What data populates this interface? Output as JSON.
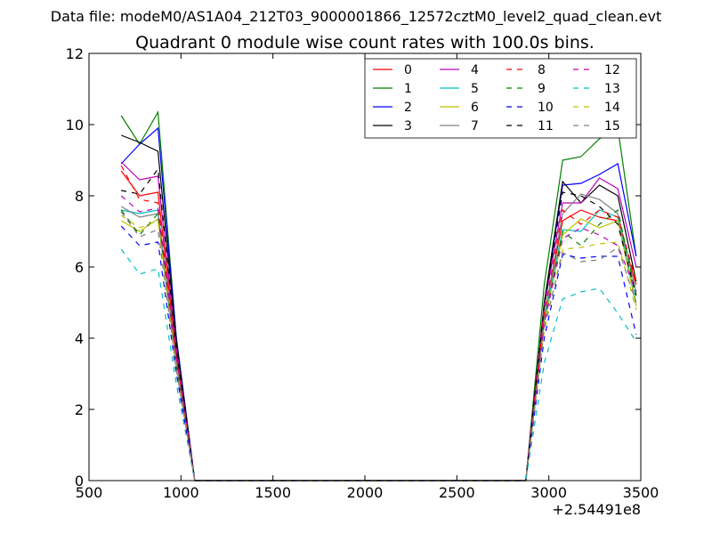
{
  "figure": {
    "suptitle": "Data file: modeM0/AS1A04_212T03_9000001866_12572cztM0_level2_quad_clean.evt",
    "title": "Quadrant 0 module wise count rates with 100.0s bins.",
    "x_offset_label": "+2.54491e8"
  },
  "chart_data": {
    "type": "line",
    "title": "Quadrant 0 module wise count rates with 100.0s bins.",
    "xlabel": "",
    "ylabel": "",
    "x_offset": "+2.54491e8",
    "xlim": [
      500,
      3500
    ],
    "ylim": [
      0,
      12
    ],
    "xticks": [
      "500",
      "1000",
      "1500",
      "2000",
      "2500",
      "3000",
      "3500"
    ],
    "yticks": [
      "0",
      "2",
      "4",
      "6",
      "8",
      "10",
      "12"
    ],
    "grid": false,
    "legend_position": "top-right",
    "legend_columns": 4,
    "x": [
      675,
      775,
      875,
      975,
      1075,
      1175,
      1275,
      1375,
      1475,
      1575,
      1675,
      1775,
      1875,
      1975,
      2075,
      2175,
      2275,
      2375,
      2475,
      2575,
      2675,
      2775,
      2875,
      2975,
      3075,
      3175,
      3275,
      3375,
      3475
    ],
    "series": [
      {
        "name": "0",
        "color": "#ff0000",
        "dashed": false,
        "values": [
          8.7,
          8.0,
          8.1,
          3.5,
          0,
          0,
          0,
          0,
          0,
          0,
          0,
          0,
          0,
          0,
          0,
          0,
          0,
          0,
          0,
          0,
          0,
          0,
          0,
          4.6,
          7.3,
          7.6,
          7.4,
          7.3,
          5.5
        ]
      },
      {
        "name": "1",
        "color": "#008000",
        "dashed": false,
        "values": [
          10.25,
          9.45,
          10.35,
          4.0,
          0,
          0,
          0,
          0,
          0,
          0,
          0,
          0,
          0,
          0,
          0,
          0,
          0,
          0,
          0,
          0,
          0,
          0,
          0,
          5.5,
          9.0,
          9.1,
          9.6,
          9.9,
          6.3
        ]
      },
      {
        "name": "2",
        "color": "#0000ff",
        "dashed": false,
        "values": [
          8.9,
          9.45,
          9.9,
          4.0,
          0,
          0,
          0,
          0,
          0,
          0,
          0,
          0,
          0,
          0,
          0,
          0,
          0,
          0,
          0,
          0,
          0,
          0,
          0,
          4.9,
          8.3,
          8.35,
          8.6,
          8.9,
          6.3
        ]
      },
      {
        "name": "3",
        "color": "#000000",
        "dashed": false,
        "values": [
          9.7,
          9.5,
          9.25,
          3.9,
          0,
          0,
          0,
          0,
          0,
          0,
          0,
          0,
          0,
          0,
          0,
          0,
          0,
          0,
          0,
          0,
          0,
          0,
          0,
          5.0,
          8.4,
          7.8,
          8.3,
          8.0,
          5.6
        ]
      },
      {
        "name": "4",
        "color": "#bf00bf",
        "dashed": false,
        "values": [
          8.95,
          8.45,
          8.55,
          3.7,
          0,
          0,
          0,
          0,
          0,
          0,
          0,
          0,
          0,
          0,
          0,
          0,
          0,
          0,
          0,
          0,
          0,
          0,
          0,
          4.9,
          7.8,
          7.8,
          8.5,
          8.2,
          6.0
        ]
      },
      {
        "name": "5",
        "color": "#00bfbf",
        "dashed": false,
        "values": [
          7.6,
          7.5,
          7.6,
          3.3,
          0,
          0,
          0,
          0,
          0,
          0,
          0,
          0,
          0,
          0,
          0,
          0,
          0,
          0,
          0,
          0,
          0,
          0,
          0,
          4.5,
          7.05,
          7.0,
          7.6,
          7.4,
          5.0
        ]
      },
      {
        "name": "6",
        "color": "#bfbf00",
        "dashed": false,
        "values": [
          7.3,
          7.0,
          7.35,
          3.2,
          0,
          0,
          0,
          0,
          0,
          0,
          0,
          0,
          0,
          0,
          0,
          0,
          0,
          0,
          0,
          0,
          0,
          0,
          0,
          4.4,
          6.9,
          7.35,
          7.1,
          7.3,
          4.9
        ]
      },
      {
        "name": "7",
        "color": "#808080",
        "dashed": false,
        "values": [
          7.7,
          7.4,
          7.5,
          3.3,
          0,
          0,
          0,
          0,
          0,
          0,
          0,
          0,
          0,
          0,
          0,
          0,
          0,
          0,
          0,
          0,
          0,
          0,
          0,
          4.6,
          7.5,
          8.05,
          7.9,
          7.5,
          5.3
        ]
      },
      {
        "name": "8",
        "color": "#ff0000",
        "dashed": true,
        "values": [
          8.85,
          7.9,
          7.8,
          3.5,
          0,
          0,
          0,
          0,
          0,
          0,
          0,
          0,
          0,
          0,
          0,
          0,
          0,
          0,
          0,
          0,
          0,
          0,
          0,
          4.7,
          7.6,
          7.2,
          7.6,
          7.4,
          5.6
        ]
      },
      {
        "name": "9",
        "color": "#008000",
        "dashed": true,
        "values": [
          7.6,
          6.9,
          7.5,
          3.2,
          0,
          0,
          0,
          0,
          0,
          0,
          0,
          0,
          0,
          0,
          0,
          0,
          0,
          0,
          0,
          0,
          0,
          0,
          0,
          4.4,
          7.0,
          6.6,
          7.2,
          7.6,
          5.2
        ]
      },
      {
        "name": "10",
        "color": "#0000ff",
        "dashed": true,
        "values": [
          7.15,
          6.6,
          6.7,
          3.0,
          0,
          0,
          0,
          0,
          0,
          0,
          0,
          0,
          0,
          0,
          0,
          0,
          0,
          0,
          0,
          0,
          0,
          0,
          0,
          4.0,
          6.35,
          6.25,
          6.3,
          6.3,
          4.1
        ]
      },
      {
        "name": "11",
        "color": "#000000",
        "dashed": true,
        "values": [
          8.15,
          8.05,
          8.75,
          3.7,
          0,
          0,
          0,
          0,
          0,
          0,
          0,
          0,
          0,
          0,
          0,
          0,
          0,
          0,
          0,
          0,
          0,
          0,
          0,
          4.9,
          8.1,
          8.0,
          7.7,
          7.2,
          5.2
        ]
      },
      {
        "name": "12",
        "color": "#bf00bf",
        "dashed": true,
        "values": [
          8.0,
          7.55,
          7.65,
          3.4,
          0,
          0,
          0,
          0,
          0,
          0,
          0,
          0,
          0,
          0,
          0,
          0,
          0,
          0,
          0,
          0,
          0,
          0,
          0,
          4.4,
          6.8,
          7.1,
          6.9,
          6.6,
          5.3
        ]
      },
      {
        "name": "13",
        "color": "#00bfbf",
        "dashed": true,
        "values": [
          6.5,
          5.8,
          5.95,
          2.7,
          0,
          0,
          0,
          0,
          0,
          0,
          0,
          0,
          0,
          0,
          0,
          0,
          0,
          0,
          0,
          0,
          0,
          0,
          0,
          3.3,
          5.1,
          5.3,
          5.4,
          4.7,
          3.9
        ]
      },
      {
        "name": "14",
        "color": "#bfbf00",
        "dashed": true,
        "values": [
          7.45,
          7.1,
          7.3,
          3.2,
          0,
          0,
          0,
          0,
          0,
          0,
          0,
          0,
          0,
          0,
          0,
          0,
          0,
          0,
          0,
          0,
          0,
          0,
          0,
          4.2,
          6.5,
          6.55,
          6.65,
          6.7,
          4.8
        ]
      },
      {
        "name": "15",
        "color": "#808080",
        "dashed": true,
        "values": [
          7.55,
          6.85,
          7.05,
          3.1,
          0,
          0,
          0,
          0,
          0,
          0,
          0,
          0,
          0,
          0,
          0,
          0,
          0,
          0,
          0,
          0,
          0,
          0,
          0,
          4.3,
          6.4,
          6.15,
          6.2,
          6.55,
          5.0
        ]
      }
    ]
  }
}
